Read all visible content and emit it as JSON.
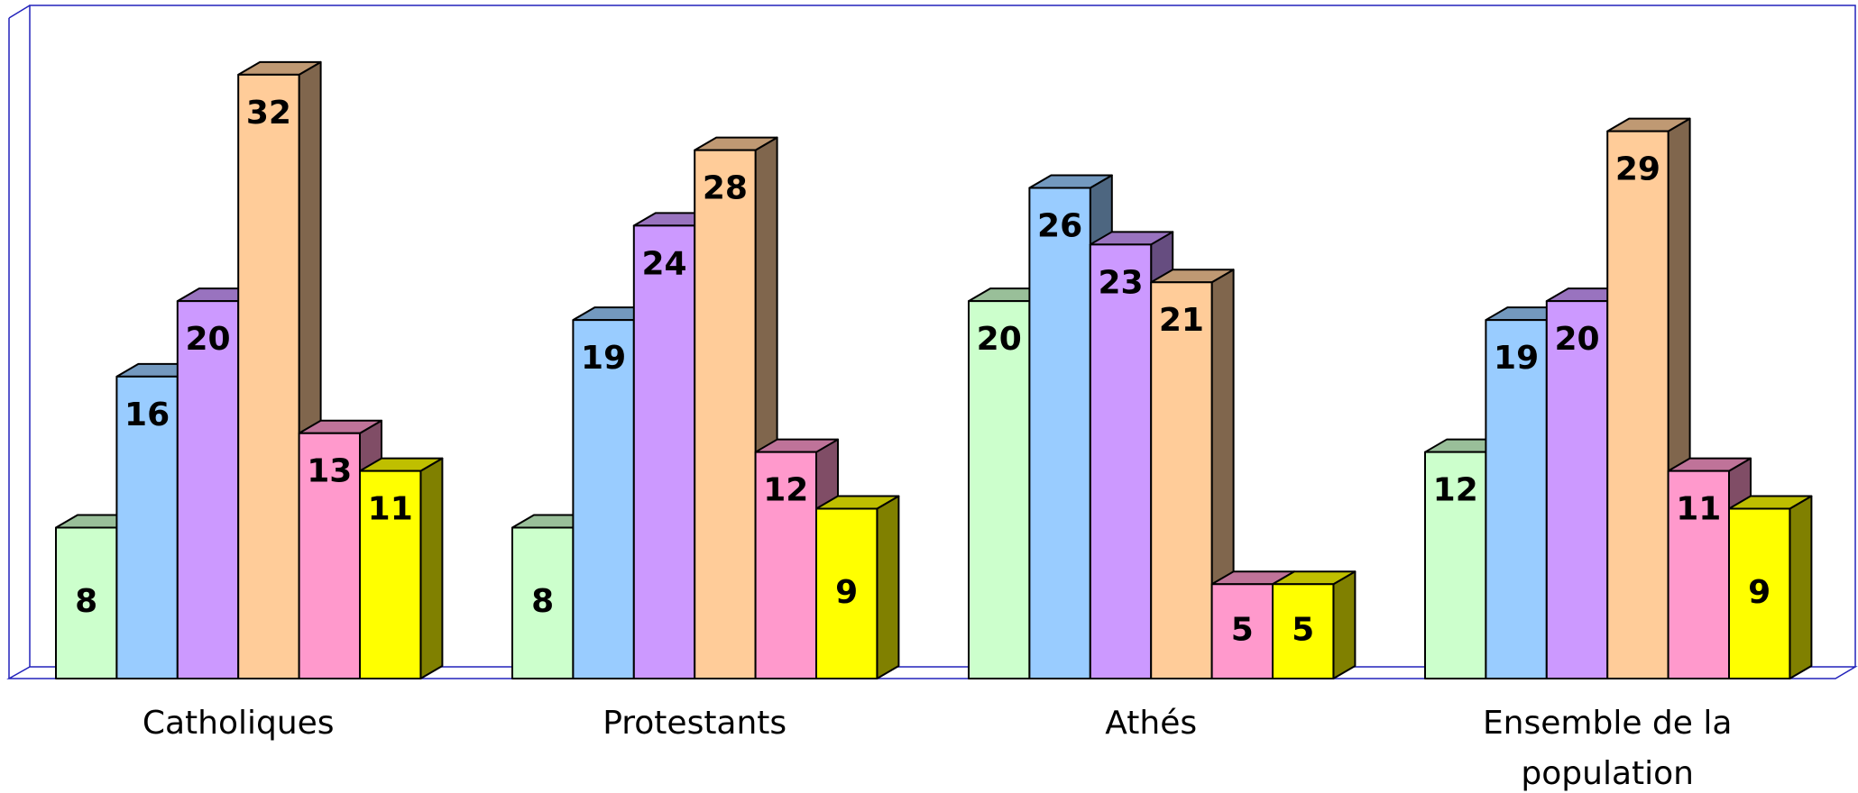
{
  "chart_data": {
    "type": "bar3d",
    "categories": [
      "Catholiques",
      "Protestants",
      "Athés",
      "Ensemble de la population"
    ],
    "series": [
      {
        "color": "#ccffcc",
        "values": [
          8,
          8,
          20,
          12
        ]
      },
      {
        "color": "#99ccff",
        "values": [
          16,
          19,
          26,
          19
        ]
      },
      {
        "color": "#cc99ff",
        "values": [
          20,
          24,
          23,
          20
        ]
      },
      {
        "color": "#ffcc99",
        "values": [
          32,
          28,
          21,
          29
        ]
      },
      {
        "color": "#ff99cc",
        "values": [
          13,
          12,
          5,
          11
        ]
      },
      {
        "color": "#ffff00",
        "values": [
          11,
          9,
          5,
          9
        ]
      }
    ],
    "ylim": [
      0,
      35
    ]
  }
}
